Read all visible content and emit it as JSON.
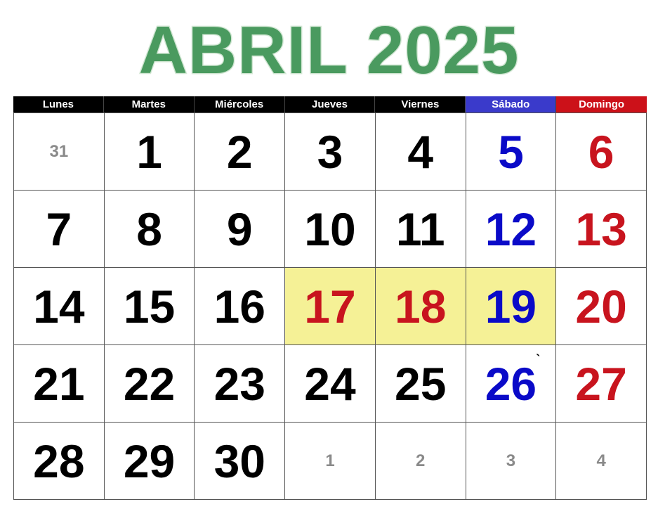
{
  "title": "ABRIL 2025",
  "colors": {
    "title_green": "#4a9a5f",
    "header_black": "#000000",
    "saturday_blue": "#3a3acb",
    "sunday_red": "#cc1119",
    "highlight_yellow": "#f5f196"
  },
  "weekdays": [
    {
      "label": "Lunes",
      "bg": "#000000"
    },
    {
      "label": "Martes",
      "bg": "#000000"
    },
    {
      "label": "Miércoles",
      "bg": "#000000"
    },
    {
      "label": "Jueves",
      "bg": "#000000"
    },
    {
      "label": "Viernes",
      "bg": "#000000"
    },
    {
      "label": "Sábado",
      "bg": "#3a3acb"
    },
    {
      "label": "Domingo",
      "bg": "#cc1119"
    }
  ],
  "days": [
    {
      "n": "31",
      "kind": "other"
    },
    {
      "n": "1",
      "kind": "normal"
    },
    {
      "n": "2",
      "kind": "normal"
    },
    {
      "n": "3",
      "kind": "normal"
    },
    {
      "n": "4",
      "kind": "normal"
    },
    {
      "n": "5",
      "kind": "sat"
    },
    {
      "n": "6",
      "kind": "sun"
    },
    {
      "n": "7",
      "kind": "normal"
    },
    {
      "n": "8",
      "kind": "normal"
    },
    {
      "n": "9",
      "kind": "normal"
    },
    {
      "n": "10",
      "kind": "normal"
    },
    {
      "n": "11",
      "kind": "normal"
    },
    {
      "n": "12",
      "kind": "sat"
    },
    {
      "n": "13",
      "kind": "sun"
    },
    {
      "n": "14",
      "kind": "normal"
    },
    {
      "n": "15",
      "kind": "normal"
    },
    {
      "n": "16",
      "kind": "normal"
    },
    {
      "n": "17",
      "kind": "holiday",
      "highlight": true
    },
    {
      "n": "18",
      "kind": "holiday",
      "highlight": true
    },
    {
      "n": "19",
      "kind": "sat",
      "highlight": true
    },
    {
      "n": "20",
      "kind": "sun"
    },
    {
      "n": "21",
      "kind": "normal"
    },
    {
      "n": "22",
      "kind": "normal"
    },
    {
      "n": "23",
      "kind": "normal"
    },
    {
      "n": "24",
      "kind": "normal"
    },
    {
      "n": "25",
      "kind": "normal"
    },
    {
      "n": "26",
      "kind": "sat",
      "mark": "`"
    },
    {
      "n": "27",
      "kind": "sun"
    },
    {
      "n": "28",
      "kind": "normal"
    },
    {
      "n": "29",
      "kind": "normal"
    },
    {
      "n": "30",
      "kind": "normal"
    },
    {
      "n": "1",
      "kind": "other"
    },
    {
      "n": "2",
      "kind": "other"
    },
    {
      "n": "3",
      "kind": "other"
    },
    {
      "n": "4",
      "kind": "other"
    }
  ]
}
